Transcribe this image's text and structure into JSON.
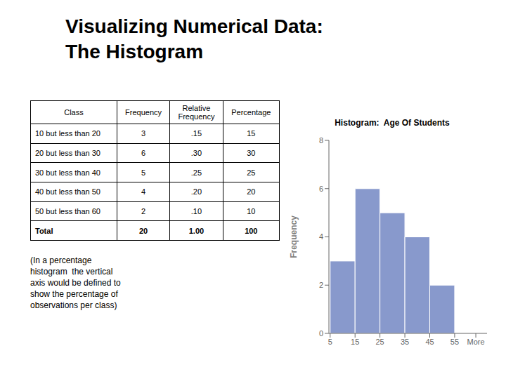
{
  "title": "Visualizing Numerical Data:\nThe Histogram",
  "table": {
    "headers": [
      "Class",
      "Frequency",
      "Relative\nFrequency",
      "Percentage"
    ],
    "rows": [
      [
        "10 but less than 20",
        "3",
        ".15",
        "15"
      ],
      [
        "20 but less than 30",
        "6",
        ".30",
        "30"
      ],
      [
        "30 but less than 40",
        "5",
        ".25",
        "25"
      ],
      [
        "40 but less than 50",
        "4",
        ".20",
        "20"
      ],
      [
        "50 but less than 60",
        "2",
        ".10",
        "10"
      ],
      [
        "Total",
        "20",
        "1.00",
        "100"
      ]
    ]
  },
  "annotations": [
    "(In a percentage\nhistogram  the vertical\naxis would be defined to\nshow the percentage of\nobservations per class)"
  ],
  "chart_data": {
    "type": "histogram",
    "title": "Histogram:  Age Of Students",
    "ylabel": "Frequency",
    "bins": [
      5,
      15,
      25,
      35,
      45,
      55
    ],
    "values": [
      3,
      6,
      5,
      4,
      2
    ],
    "color": "#8899cc",
    "xlim": [
      4.5,
      68
    ],
    "xticks": [
      5,
      15,
      25,
      35,
      45,
      55,
      {
        "value": 63.5,
        "label": "More"
      }
    ],
    "ylim": [
      0,
      8
    ],
    "yticks": [
      0,
      2,
      4,
      6,
      8
    ]
  }
}
